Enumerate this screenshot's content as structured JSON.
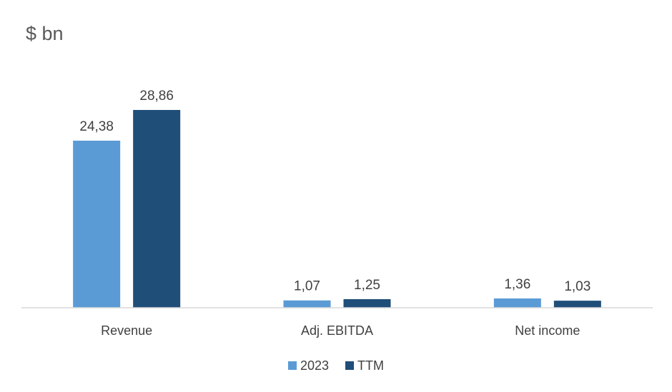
{
  "chart_data": {
    "type": "bar",
    "title": "$ bn",
    "xlabel": "",
    "ylabel": "",
    "categories": [
      "Revenue",
      "Adj. EBITDA",
      "Net income"
    ],
    "series": [
      {
        "name": "2023",
        "values": [
          24.38,
          1.07,
          1.36
        ],
        "labels": [
          "24,38",
          "1,07",
          "1,36"
        ],
        "color": "#5B9BD5"
      },
      {
        "name": "TTM",
        "values": [
          28.86,
          1.25,
          1.03
        ],
        "labels": [
          "28,86",
          "1,25",
          "1,03"
        ],
        "color": "#1F4E79"
      }
    ],
    "ylim": [
      0,
      28.86
    ],
    "grid": false,
    "legend": "bottom-center",
    "axis_color": "#D9D9D9"
  }
}
